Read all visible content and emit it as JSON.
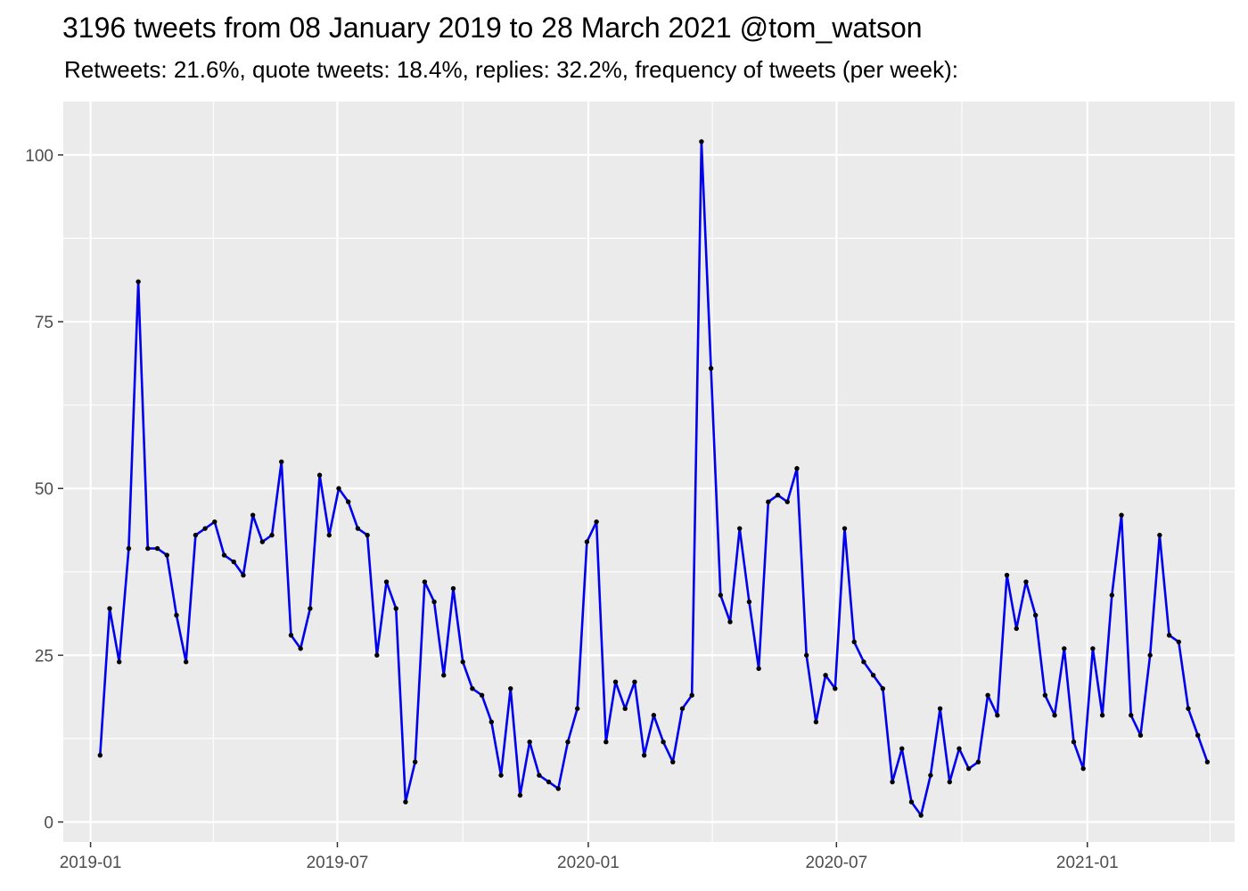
{
  "chart_data": {
    "type": "line",
    "title": "3196 tweets from 08 January 2019 to 28 March 2021 @tom_watson",
    "subtitle": "Retweets: 21.6%, quote tweets: 18.4%, replies: 32.2%, frequency of tweets (per week):",
    "xlabel": "",
    "ylabel": "",
    "grid": true,
    "legend": "none",
    "series_color": "#0000ee",
    "point_color": "#000000",
    "panel_color": "#ebebeb",
    "x_range": [
      "2018-12-12",
      "2021-04-19"
    ],
    "ylim": [
      -3,
      108
    ],
    "x_ticks": [
      {
        "date": "2019-01-01",
        "label": "2019-01"
      },
      {
        "date": "2019-07-01",
        "label": "2019-07"
      },
      {
        "date": "2020-01-01",
        "label": "2020-01"
      },
      {
        "date": "2020-07-01",
        "label": "2020-07"
      },
      {
        "date": "2021-01-01",
        "label": "2021-01"
      }
    ],
    "x_minor_ticks": [
      "2019-04-01",
      "2019-10-01",
      "2020-04-01",
      "2020-10-01",
      "2021-04-01"
    ],
    "y_ticks": [
      0,
      25,
      50,
      75,
      100
    ],
    "y_tick_labels": [
      "0",
      "25",
      "50",
      "75",
      "100"
    ],
    "y_minor_ticks": [
      12.5,
      37.5,
      62.5,
      87.5
    ],
    "start_date": "2019-01-08",
    "interval_days": 7,
    "values": [
      10,
      32,
      24,
      41,
      81,
      41,
      41,
      40,
      31,
      24,
      43,
      44,
      45,
      40,
      39,
      37,
      46,
      42,
      43,
      54,
      28,
      26,
      32,
      52,
      43,
      50,
      48,
      44,
      43,
      25,
      36,
      32,
      3,
      9,
      36,
      33,
      22,
      35,
      24,
      20,
      19,
      15,
      7,
      20,
      4,
      12,
      7,
      6,
      5,
      12,
      17,
      42,
      45,
      12,
      21,
      17,
      21,
      10,
      16,
      12,
      9,
      17,
      19,
      102,
      68,
      34,
      30,
      44,
      33,
      23,
      48,
      49,
      48,
      53,
      25,
      15,
      22,
      20,
      44,
      27,
      24,
      22,
      20,
      6,
      11,
      3,
      1,
      7,
      17,
      6,
      11,
      8,
      9,
      19,
      16,
      37,
      29,
      36,
      31,
      19,
      16,
      26,
      12,
      8,
      26,
      16,
      34,
      46,
      16,
      13,
      25,
      43,
      28,
      27,
      17,
      13,
      9
    ]
  }
}
